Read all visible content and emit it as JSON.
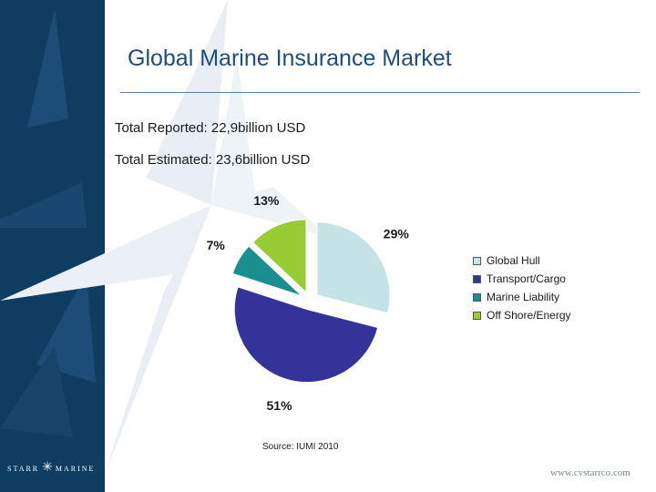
{
  "slide": {
    "title": "Global Marine Insurance Market",
    "subtitle_reported": "Total Reported: 22,9billion USD",
    "subtitle_estimated": "Total Estimated:  23,6billion USD",
    "source": "Source:  IUMI 2010",
    "brand": {
      "left": "STARR",
      "right": "MARINE"
    },
    "url": "www.cvstarrco.com"
  },
  "chart_data": {
    "type": "pie",
    "title": "",
    "labels": [
      "Global Hull",
      "Transport/Cargo",
      "Marine Liability",
      "Off Shore/Energy"
    ],
    "values": [
      29,
      51,
      7,
      13
    ],
    "value_labels": [
      "29%",
      "51%",
      "7%",
      "13%"
    ],
    "colors": [
      "#c5e3e6",
      "#333399",
      "#1a8f8f",
      "#99cc33"
    ],
    "exploded": true,
    "legend_position": "right"
  }
}
